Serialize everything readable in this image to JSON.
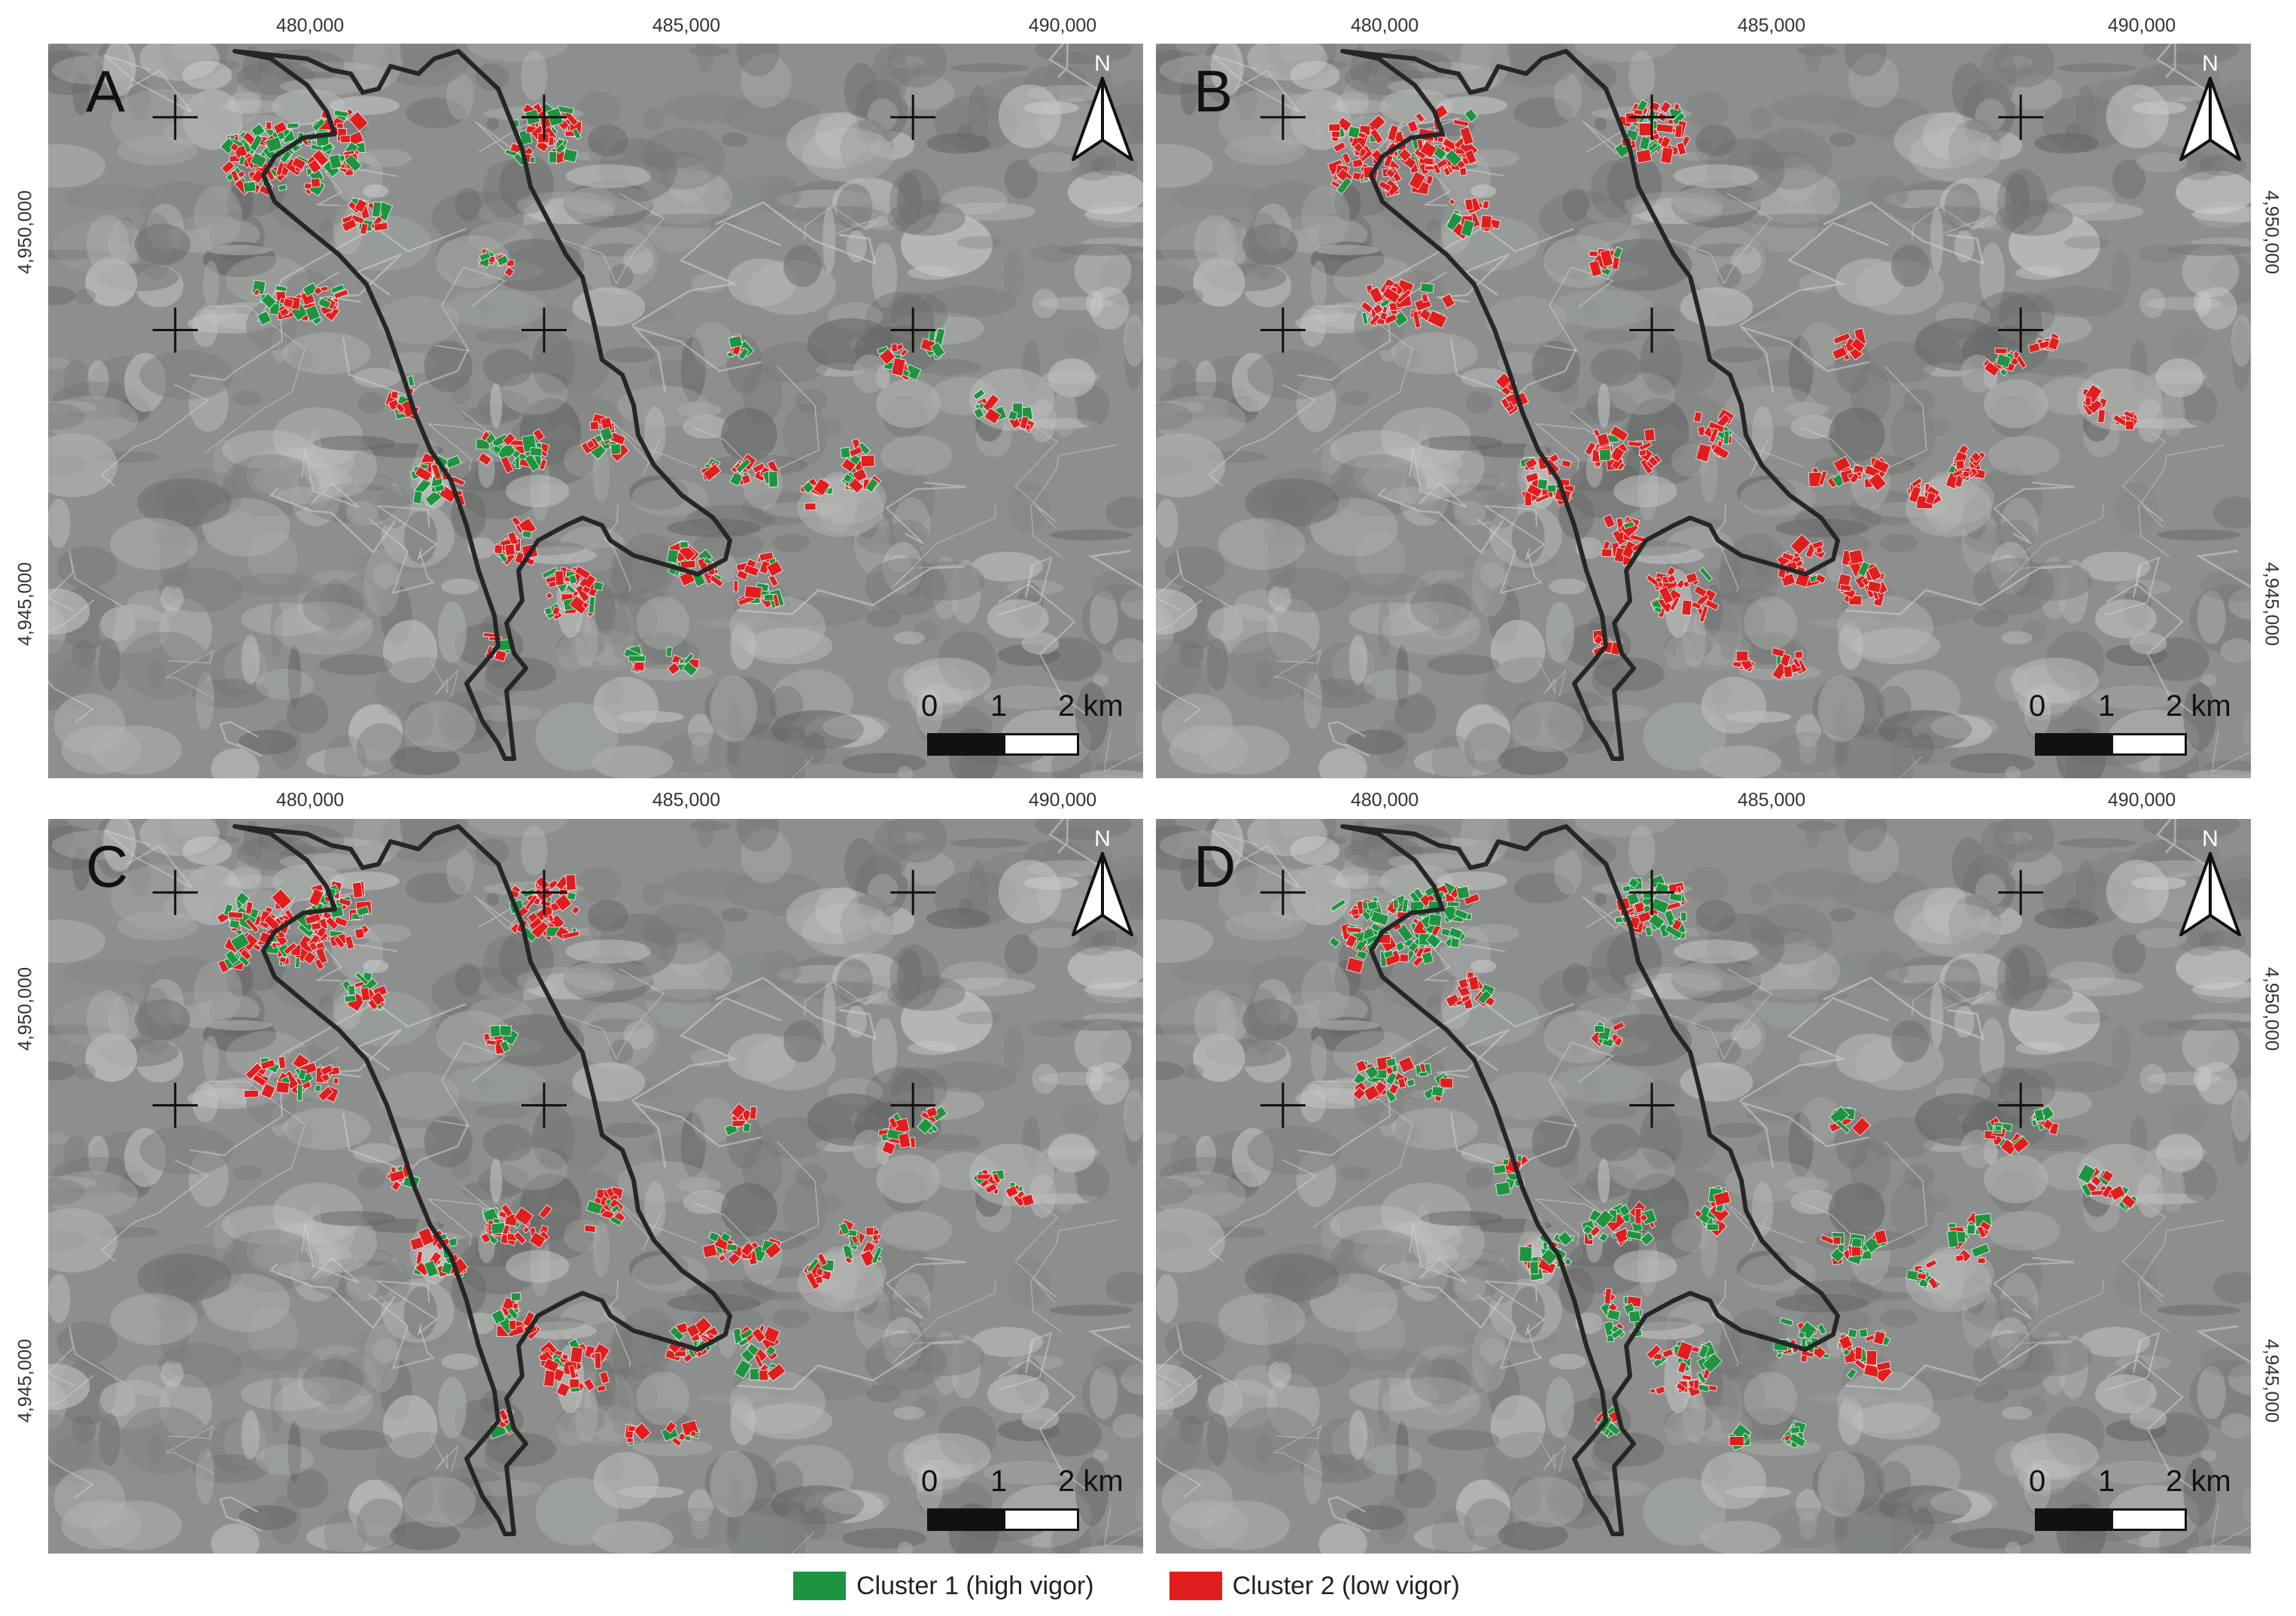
{
  "figure": {
    "panels": [
      {
        "label": "A",
        "top_ticks": [
          "480,000",
          "485,000",
          "490,000"
        ],
        "side_ticks": [
          "4,950,000",
          "4,945,000"
        ],
        "side": "left",
        "scale": [
          "0",
          "1",
          "2 km"
        ],
        "north": "N",
        "green_share": 0.45
      },
      {
        "label": "B",
        "top_ticks": [
          "480,000",
          "485,000",
          "490,000"
        ],
        "side_ticks": [
          "4,950,000",
          "4,945,000"
        ],
        "side": "right",
        "scale": [
          "0",
          "1",
          "2 km"
        ],
        "north": "N",
        "green_share": 0.15
      },
      {
        "label": "C",
        "top_ticks": [
          "480,000",
          "485,000",
          "490,000"
        ],
        "side_ticks": [
          "4,950,000",
          "4,945,000"
        ],
        "side": "left",
        "scale": [
          "0",
          "1",
          "2 km"
        ],
        "north": "N",
        "green_share": 0.3
      },
      {
        "label": "D",
        "top_ticks": [
          "480,000",
          "485,000",
          "490,000"
        ],
        "side_ticks": [
          "4,950,000",
          "4,945,000"
        ],
        "side": "right",
        "scale": [
          "0",
          "1",
          "2 km"
        ],
        "north": "N",
        "green_share": 0.55
      }
    ],
    "legend": [
      {
        "label": "Cluster 1 (high vigor)",
        "color": "#1e9440"
      },
      {
        "label": "Cluster 2 (low vigor)",
        "color": "#e01e1e"
      }
    ],
    "colors": {
      "cluster1": "#1e9440",
      "cluster2": "#e01e1e",
      "boundary": "#262626",
      "imagery": "#8c8f8d"
    }
  }
}
